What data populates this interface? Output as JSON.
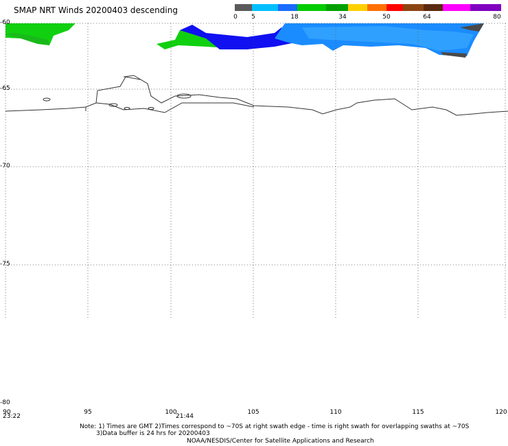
{
  "title": "SMAP NRT Winds  20200403 descending",
  "colorbar": {
    "labels": [
      "0",
      "5",
      "18",
      "34",
      "50",
      "64",
      "80"
    ],
    "segments": [
      "#5a5a5a",
      "#00bfff",
      "#1a6bff",
      "#00cc00",
      "#00a000",
      "#ffd000",
      "#ff7000",
      "#ff0000",
      "#8b4513",
      "#5a2a10",
      "#ff00ff",
      "#8000c0"
    ]
  },
  "lat_labels": [
    "-60",
    "-65",
    "-70",
    "-75",
    "-80"
  ],
  "lon_labels": [
    "90",
    "95",
    "100",
    "105",
    "110",
    "115",
    "120"
  ],
  "times": [
    "23:22",
    "21:44"
  ],
  "notes": [
    "Note: 1) Times are GMT 2)Times correspond to ~70S at right swath edge - time is right swath for overlapping swaths at ~70S",
    "3)Data buffer is 24 hrs for 20200403",
    "NOAA/NESDIS/Center for Satellite Applications and Research"
  ]
}
